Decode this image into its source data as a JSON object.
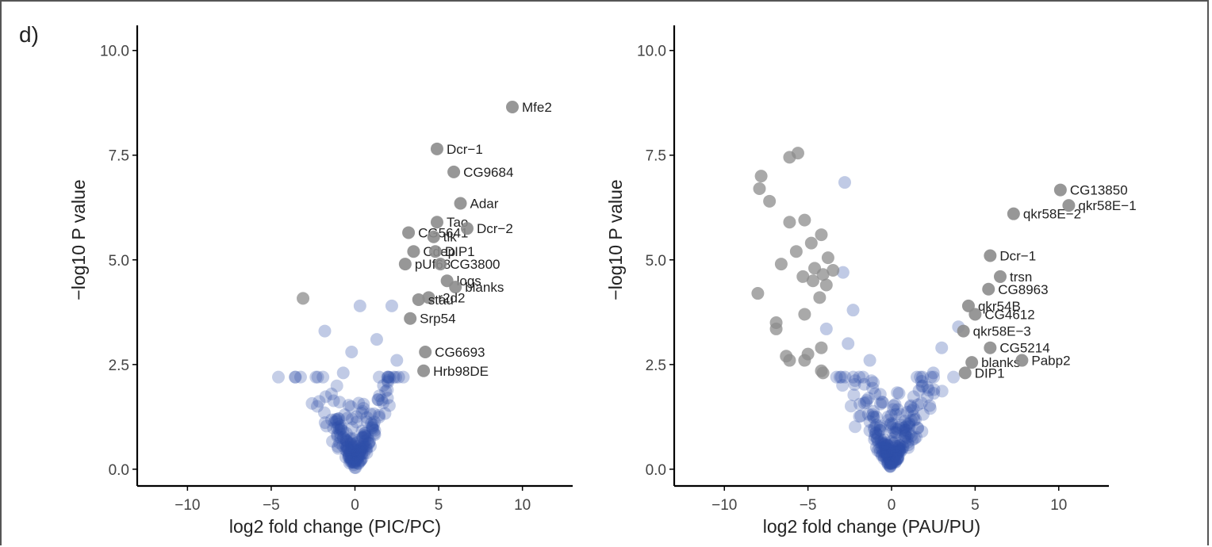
{
  "panel_label": "d)",
  "colors": {
    "significant": "#8c8c8c",
    "nonsignificant": "#2f4fa8",
    "axis": "#000000",
    "text": "#222222"
  },
  "chart_data": [
    {
      "type": "scatter",
      "xlabel": "log2 fold change (PIC/PC)",
      "ylabel": "−log10 P value",
      "xlim": [
        -13,
        13
      ],
      "ylim": [
        -0.4,
        10.6
      ],
      "xticks": [
        -10,
        -5,
        0,
        5,
        10
      ],
      "xtick_labels": [
        "−10",
        "−5",
        "0",
        "5",
        "10"
      ],
      "yticks": [
        0,
        2.5,
        5,
        7.5,
        10
      ],
      "ytick_labels": [
        "0.0",
        "2.5",
        "5.0",
        "7.5",
        "10.0"
      ],
      "grid": false,
      "labeled_points": [
        {
          "label": "Mfe2",
          "x": 9.4,
          "y": 8.65
        },
        {
          "label": "Dcr−1",
          "x": 4.9,
          "y": 7.65
        },
        {
          "label": "CG9684",
          "x": 5.9,
          "y": 7.1
        },
        {
          "label": "Adar",
          "x": 6.3,
          "y": 6.35
        },
        {
          "label": "Tao",
          "x": 4.9,
          "y": 5.9
        },
        {
          "label": "CG5641",
          "x": 3.2,
          "y": 5.65
        },
        {
          "label": "tlk",
          "x": 4.7,
          "y": 5.55
        },
        {
          "label": "Dcr−2",
          "x": 6.7,
          "y": 5.75
        },
        {
          "label": "Cdep",
          "x": 3.5,
          "y": 5.2
        },
        {
          "label": "DIP1",
          "x": 4.8,
          "y": 5.2
        },
        {
          "label": "pUf68",
          "x": 3.0,
          "y": 4.9
        },
        {
          "label": "CG3800",
          "x": 5.1,
          "y": 4.9
        },
        {
          "label": "logs",
          "x": 5.5,
          "y": 4.5
        },
        {
          "label": "blanks",
          "x": 6.0,
          "y": 4.35
        },
        {
          "label": "r2d2",
          "x": 4.4,
          "y": 4.1
        },
        {
          "label": "stau",
          "x": 3.8,
          "y": 4.05
        },
        {
          "label": "Srp54",
          "x": 3.3,
          "y": 3.6
        },
        {
          "label": "CG6693",
          "x": 4.2,
          "y": 2.8
        },
        {
          "label": "Hrb98DE",
          "x": 4.1,
          "y": 2.35
        }
      ],
      "extra_significant": [
        {
          "x": -3.1,
          "y": 4.08
        }
      ],
      "outlier_points": [
        {
          "x": 0.3,
          "y": 3.9
        },
        {
          "x": -0.2,
          "y": 2.8
        },
        {
          "x": 1.7,
          "y": 2.0
        },
        {
          "x": -1.8,
          "y": 3.3
        },
        {
          "x": 1.3,
          "y": 3.1
        },
        {
          "x": 2.2,
          "y": 3.9
        },
        {
          "x": -0.7,
          "y": 2.3
        },
        {
          "x": 2.5,
          "y": 2.6
        }
      ],
      "n_background": 200
    },
    {
      "type": "scatter",
      "xlabel": "log2 fold change (PAU/PU)",
      "ylabel": "−log10 P value",
      "xlim": [
        -13,
        13
      ],
      "ylim": [
        -0.4,
        10.6
      ],
      "xticks": [
        -10,
        -5,
        0,
        5,
        10
      ],
      "xtick_labels": [
        "−10",
        "−5",
        "0",
        "5",
        "10"
      ],
      "yticks": [
        0,
        2.5,
        5,
        7.5,
        10
      ],
      "ytick_labels": [
        "0.0",
        "2.5",
        "5.0",
        "7.5",
        "10.0"
      ],
      "grid": false,
      "labeled_points": [
        {
          "label": "CG13850",
          "x": 10.1,
          "y": 6.67
        },
        {
          "label": "qkr58E−2",
          "x": 7.3,
          "y": 6.1
        },
        {
          "label": "qkr58E−1",
          "x": 10.6,
          "y": 6.3
        },
        {
          "label": "Dcr−1",
          "x": 5.9,
          "y": 5.1
        },
        {
          "label": "trsn",
          "x": 6.5,
          "y": 4.6
        },
        {
          "label": "CG8963",
          "x": 5.8,
          "y": 4.3
        },
        {
          "label": "qkr54B",
          "x": 4.6,
          "y": 3.9
        },
        {
          "label": "CG4612",
          "x": 5.0,
          "y": 3.7
        },
        {
          "label": "qkr58E−3",
          "x": 4.3,
          "y": 3.3
        },
        {
          "label": "blanks",
          "x": 4.8,
          "y": 2.55
        },
        {
          "label": "CG5214",
          "x": 5.9,
          "y": 2.9
        },
        {
          "label": "Pabp2",
          "x": 7.8,
          "y": 2.6
        },
        {
          "label": "DIP1",
          "x": 4.4,
          "y": 2.3
        }
      ],
      "extra_significant": [
        {
          "x": -5.6,
          "y": 7.55
        },
        {
          "x": -6.1,
          "y": 7.45
        },
        {
          "x": -7.8,
          "y": 7.0
        },
        {
          "x": -7.9,
          "y": 6.7
        },
        {
          "x": -7.3,
          "y": 6.4
        },
        {
          "x": -5.2,
          "y": 5.95
        },
        {
          "x": -6.1,
          "y": 5.9
        },
        {
          "x": -4.8,
          "y": 5.4
        },
        {
          "x": -5.7,
          "y": 5.2
        },
        {
          "x": -4.2,
          "y": 5.6
        },
        {
          "x": -3.8,
          "y": 5.05
        },
        {
          "x": -6.6,
          "y": 4.9
        },
        {
          "x": -4.6,
          "y": 4.8
        },
        {
          "x": -4.1,
          "y": 4.65
        },
        {
          "x": -3.5,
          "y": 4.75
        },
        {
          "x": -5.3,
          "y": 4.6
        },
        {
          "x": -3.9,
          "y": 4.4
        },
        {
          "x": -4.7,
          "y": 4.5
        },
        {
          "x": -8.0,
          "y": 4.2
        },
        {
          "x": -4.3,
          "y": 4.1
        },
        {
          "x": -5.2,
          "y": 3.7
        },
        {
          "x": -6.9,
          "y": 3.5
        },
        {
          "x": -6.9,
          "y": 3.35
        },
        {
          "x": -5.2,
          "y": 2.6
        },
        {
          "x": -6.3,
          "y": 2.7
        },
        {
          "x": -6.1,
          "y": 2.6
        },
        {
          "x": -5.0,
          "y": 2.75
        },
        {
          "x": -4.2,
          "y": 2.9
        },
        {
          "x": -4.2,
          "y": 2.35
        },
        {
          "x": -4.1,
          "y": 2.3
        }
      ],
      "outlier_points": [
        {
          "x": -2.8,
          "y": 6.85
        },
        {
          "x": -2.3,
          "y": 3.8
        },
        {
          "x": -2.6,
          "y": 3.0
        },
        {
          "x": -3.9,
          "y": 3.35
        },
        {
          "x": 4.0,
          "y": 3.4
        },
        {
          "x": 3.0,
          "y": 2.9
        },
        {
          "x": -1.3,
          "y": 2.6
        },
        {
          "x": 2.5,
          "y": 2.3
        },
        {
          "x": -2.9,
          "y": 4.7
        },
        {
          "x": 1.8,
          "y": 2.1
        }
      ],
      "n_background": 230
    }
  ]
}
